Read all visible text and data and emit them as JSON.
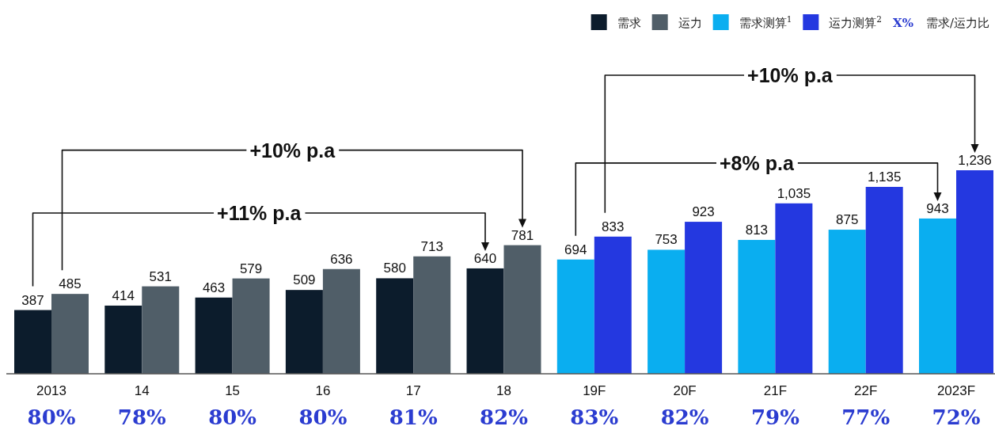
{
  "chart_data": {
    "type": "bar",
    "categories": [
      "2013",
      "14",
      "15",
      "16",
      "17",
      "18",
      "19F",
      "20F",
      "21F",
      "22F",
      "2023F"
    ],
    "series": [
      {
        "name": "需求",
        "color": "#0c1c2c",
        "values": [
          387,
          414,
          463,
          509,
          580,
          640,
          null,
          null,
          null,
          null,
          null
        ],
        "value_labels": [
          "387",
          "414",
          "463",
          "509",
          "580",
          "640",
          null,
          null,
          null,
          null,
          null
        ]
      },
      {
        "name": "运力",
        "color": "#505e68",
        "values": [
          485,
          531,
          579,
          636,
          713,
          781,
          null,
          null,
          null,
          null,
          null
        ],
        "value_labels": [
          "485",
          "531",
          "579",
          "636",
          "713",
          "781",
          null,
          null,
          null,
          null,
          null
        ]
      },
      {
        "name": "需求测算$^{1}$",
        "color": "#0aaef0",
        "values": [
          null,
          null,
          null,
          null,
          null,
          null,
          694,
          753,
          813,
          875,
          943
        ],
        "value_labels": [
          null,
          null,
          null,
          null,
          null,
          null,
          "694",
          "753",
          "813",
          "875",
          "943"
        ]
      },
      {
        "name": "运力测算$^{2}$",
        "color": "#2438e0",
        "values": [
          null,
          null,
          null,
          null,
          null,
          null,
          833,
          923,
          1035,
          1135,
          1236
        ],
        "value_labels": [
          null,
          null,
          null,
          null,
          null,
          null,
          "833",
          "923",
          "1,035",
          "1,135",
          "1,236"
        ]
      }
    ],
    "legend": "top right",
    "annotations": [
      "X%",
      "需求/运力比",
      "+11% p.a",
      "+10% p.a",
      "+8% p.a",
      "+10% p.a",
      "80%",
      "78%",
      "80%",
      "80%",
      "81%",
      "82%",
      "83%",
      "82%",
      "79%",
      "77%",
      "72%"
    ]
  }
}
